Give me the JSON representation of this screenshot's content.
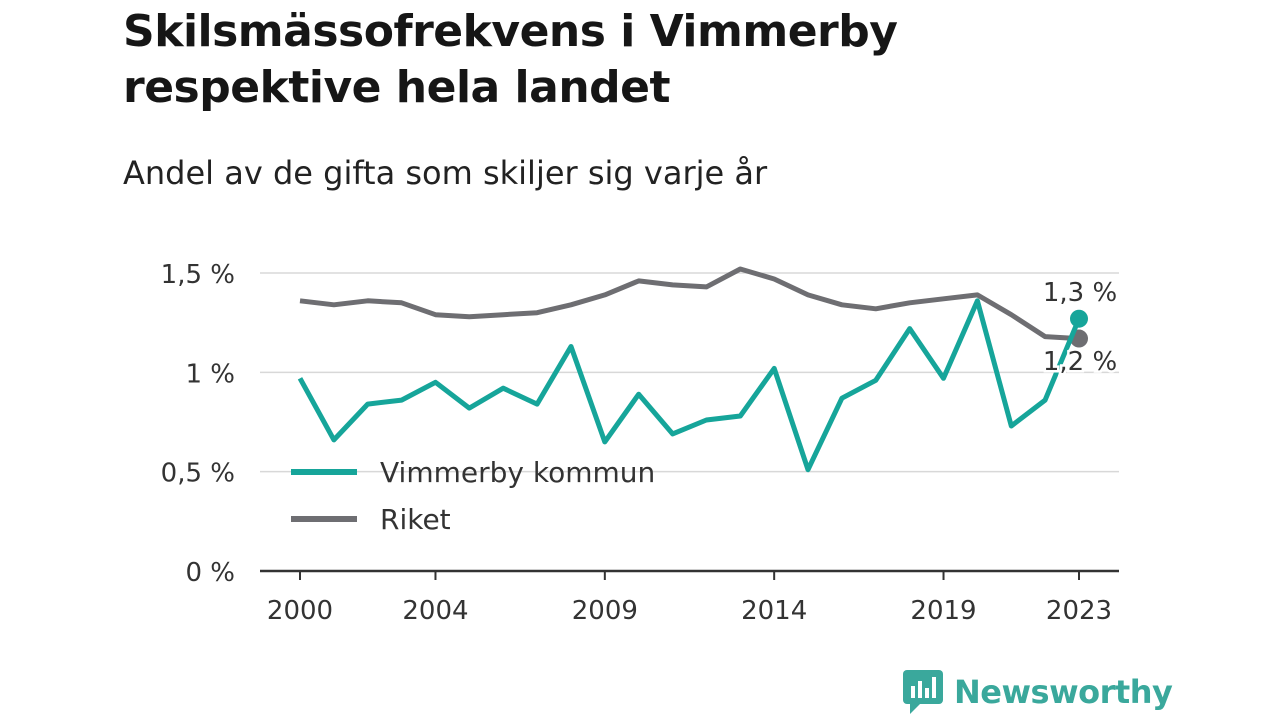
{
  "title": "Skilsmässofrekvens i Vimmerby respektive hela landet",
  "subtitle": "Andel av de gifta som skiljer sig varje år",
  "brand": {
    "name": "Newsworthy",
    "icon": "newsworthy-logo-icon",
    "color": "#3aa89c"
  },
  "chart_data": {
    "type": "line",
    "title": "Skilsmässofrekvens i Vimmerby respektive hela landet",
    "subtitle": "Andel av de gifta som skiljer sig varje år",
    "x": [
      2000,
      2001,
      2002,
      2003,
      2004,
      2005,
      2006,
      2007,
      2008,
      2009,
      2010,
      2011,
      2012,
      2013,
      2014,
      2015,
      2016,
      2017,
      2018,
      2019,
      2020,
      2021,
      2022,
      2023
    ],
    "x_ticks": [
      "2000",
      "2004",
      "2009",
      "2014",
      "2019",
      "2023"
    ],
    "y_ticks": [
      {
        "value": 0,
        "label": "0 %"
      },
      {
        "value": 0.5,
        "label": "0,5 %"
      },
      {
        "value": 1,
        "label": "1 %"
      },
      {
        "value": 1.5,
        "label": "1,5 %"
      }
    ],
    "ylim": [
      0,
      1.5
    ],
    "grid": true,
    "legend_position": "bottom-left",
    "series": [
      {
        "name": "Vimmerby kommun",
        "color": "#16a59a",
        "values": [
          0.97,
          0.66,
          0.84,
          0.86,
          0.95,
          0.82,
          0.92,
          0.84,
          1.13,
          0.65,
          0.89,
          0.69,
          0.76,
          0.78,
          1.02,
          0.51,
          0.87,
          0.96,
          1.22,
          0.97,
          1.36,
          0.73,
          0.86,
          1.27
        ],
        "end_label": "1,3 %"
      },
      {
        "name": "Riket",
        "color": "#6e6e72",
        "values": [
          1.36,
          1.34,
          1.36,
          1.35,
          1.29,
          1.28,
          1.29,
          1.3,
          1.34,
          1.39,
          1.46,
          1.44,
          1.43,
          1.52,
          1.47,
          1.39,
          1.34,
          1.32,
          1.35,
          1.37,
          1.39,
          1.29,
          1.18,
          1.17
        ],
        "end_label": "1,2 %"
      }
    ]
  }
}
